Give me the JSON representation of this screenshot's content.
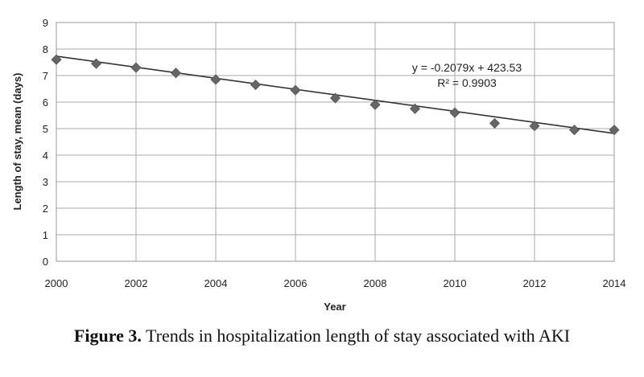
{
  "caption": {
    "label": "Figure 3.",
    "text": " Trends in hospitalization length of stay associated with AKI"
  },
  "chart_data": {
    "type": "scatter",
    "xlabel": "Year",
    "ylabel": "Length of stay, mean (days)",
    "xlim": [
      2000,
      2014
    ],
    "ylim": [
      0,
      9
    ],
    "xticks": [
      "2000",
      "2002",
      "2004",
      "2006",
      "2008",
      "2010",
      "2012",
      "2014"
    ],
    "yticks": [
      "0",
      "1",
      "2",
      "3",
      "4",
      "5",
      "6",
      "7",
      "8",
      "9"
    ],
    "grid": true,
    "legend": "none",
    "series": [
      {
        "x": [
          2000,
          2001,
          2002,
          2003,
          2004,
          2005,
          2006,
          2007,
          2008,
          2009,
          2010,
          2011,
          2012,
          2013,
          2014
        ],
        "y": [
          7.6,
          7.45,
          7.3,
          7.1,
          6.85,
          6.65,
          6.45,
          6.15,
          5.9,
          5.75,
          5.6,
          5.2,
          5.1,
          4.95,
          4.95
        ],
        "color": "#666666",
        "marker": "diamond"
      }
    ],
    "trendline": {
      "type": "linear",
      "slope": -0.2079,
      "intercept": 423.53,
      "color": "#333333",
      "equation": "y = -0.2079x + 423.53",
      "r_squared": "R² = 0.9903"
    }
  }
}
